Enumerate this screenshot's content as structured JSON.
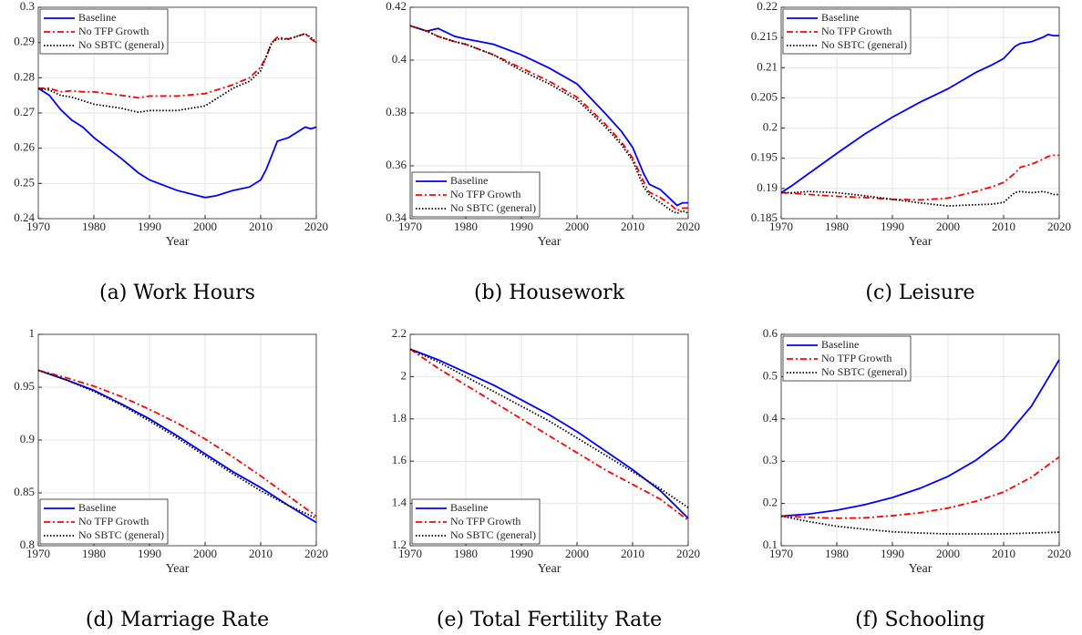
{
  "chart_data": [
    {
      "type": "line",
      "caption": "(a) Work Hours",
      "xlabel": "Year",
      "legend": "upper left",
      "grid": true,
      "x": [
        1970,
        1972,
        1974,
        1976,
        1978,
        1980,
        1985,
        1988,
        1990,
        1995,
        2000,
        2002,
        2005,
        2008,
        2010,
        2011,
        2012,
        2013,
        2015,
        2017,
        2018,
        2019,
        2020
      ],
      "series": [
        {
          "name": "Baseline",
          "color": "#0000ff",
          "style": "solid",
          "values": [
            0.277,
            0.275,
            0.271,
            0.268,
            0.266,
            0.263,
            0.257,
            0.253,
            0.251,
            0.248,
            0.246,
            0.2465,
            0.248,
            0.249,
            0.251,
            0.254,
            0.258,
            0.262,
            0.263,
            0.265,
            0.266,
            0.2655,
            0.266
          ]
        },
        {
          "name": "No TFP Growth",
          "color": "#ff0000",
          "style": "dashdot",
          "values": [
            0.277,
            0.277,
            0.276,
            0.2763,
            0.276,
            0.276,
            0.275,
            0.2743,
            0.2748,
            0.2748,
            0.2755,
            0.2765,
            0.278,
            0.28,
            0.283,
            0.286,
            0.29,
            0.2915,
            0.291,
            0.292,
            0.2925,
            0.291,
            0.29
          ]
        },
        {
          "name": "No SBTC (general)",
          "color": "#000000",
          "style": "dotted",
          "values": [
            0.277,
            0.2765,
            0.275,
            0.2745,
            0.2735,
            0.2725,
            0.2713,
            0.2702,
            0.2707,
            0.2707,
            0.272,
            0.274,
            0.277,
            0.279,
            0.282,
            0.286,
            0.29,
            0.291,
            0.291,
            0.292,
            0.2925,
            0.2915,
            0.29
          ]
        }
      ],
      "xlim": [
        1970,
        2020
      ],
      "xticks": [
        1970,
        1980,
        1990,
        2000,
        2010,
        2020
      ],
      "ylim": [
        0.24,
        0.3
      ],
      "yticks": [
        0.24,
        0.25,
        0.26,
        0.27,
        0.28,
        0.29,
        0.3
      ]
    },
    {
      "type": "line",
      "caption": "(b) Housework",
      "xlabel": "Year",
      "legend": "lower left",
      "grid": true,
      "x": [
        1970,
        1973,
        1975,
        1978,
        1980,
        1985,
        1990,
        1995,
        2000,
        2005,
        2008,
        2010,
        2012,
        2013,
        2015,
        2017,
        2018,
        2019,
        2020
      ],
      "series": [
        {
          "name": "Baseline",
          "color": "#0000ff",
          "style": "solid",
          "values": [
            0.413,
            0.411,
            0.412,
            0.409,
            0.408,
            0.406,
            0.402,
            0.397,
            0.391,
            0.38,
            0.373,
            0.367,
            0.357,
            0.353,
            0.351,
            0.347,
            0.345,
            0.346,
            0.346
          ]
        },
        {
          "name": "No TFP Growth",
          "color": "#ff0000",
          "style": "dashdot",
          "values": [
            0.413,
            0.411,
            0.409,
            0.407,
            0.406,
            0.402,
            0.397,
            0.392,
            0.386,
            0.376,
            0.369,
            0.363,
            0.354,
            0.35,
            0.348,
            0.345,
            0.343,
            0.344,
            0.344
          ]
        },
        {
          "name": "No SBTC (general)",
          "color": "#000000",
          "style": "dotted",
          "values": [
            0.413,
            0.411,
            0.409,
            0.407,
            0.406,
            0.402,
            0.396,
            0.391,
            0.385,
            0.375,
            0.368,
            0.362,
            0.352,
            0.349,
            0.346,
            0.343,
            0.342,
            0.343,
            0.342
          ]
        }
      ],
      "xlim": [
        1970,
        2020
      ],
      "xticks": [
        1970,
        1980,
        1990,
        2000,
        2010,
        2020
      ],
      "ylim": [
        0.34,
        0.42
      ],
      "yticks": [
        0.34,
        0.36,
        0.38,
        0.4,
        0.42
      ]
    },
    {
      "type": "line",
      "caption": "(c) Leisure",
      "xlabel": "Year",
      "legend": "upper left",
      "grid": true,
      "x": [
        1970,
        1972,
        1975,
        1980,
        1985,
        1990,
        1995,
        2000,
        2005,
        2008,
        2010,
        2012,
        2013,
        2015,
        2017,
        2018,
        2019,
        2020
      ],
      "series": [
        {
          "name": "Baseline",
          "color": "#0000ff",
          "style": "solid",
          "values": [
            0.1893,
            0.1905,
            0.1925,
            0.1958,
            0.199,
            0.2018,
            0.2043,
            0.2065,
            0.2092,
            0.2105,
            0.2115,
            0.2135,
            0.214,
            0.2143,
            0.215,
            0.2155,
            0.2153,
            0.2153
          ]
        },
        {
          "name": "No TFP Growth",
          "color": "#ff0000",
          "style": "dashdot",
          "values": [
            0.1893,
            0.1892,
            0.189,
            0.1887,
            0.1885,
            0.1882,
            0.1881,
            0.1884,
            0.1895,
            0.1903,
            0.191,
            0.1925,
            0.1935,
            0.194,
            0.1948,
            0.1953,
            0.1955,
            0.1955
          ]
        },
        {
          "name": "No SBTC (general)",
          "color": "#000000",
          "style": "dotted",
          "values": [
            0.1893,
            0.1893,
            0.1895,
            0.1893,
            0.1888,
            0.1882,
            0.1876,
            0.1871,
            0.1873,
            0.1874,
            0.1877,
            0.1893,
            0.1895,
            0.1893,
            0.1895,
            0.1893,
            0.189,
            0.189
          ]
        }
      ],
      "xlim": [
        1970,
        2020
      ],
      "xticks": [
        1970,
        1980,
        1990,
        2000,
        2010,
        2020
      ],
      "ylim": [
        0.185,
        0.22
      ],
      "yticks": [
        0.185,
        0.19,
        0.195,
        0.2,
        0.205,
        0.21,
        0.215,
        0.22
      ]
    },
    {
      "type": "line",
      "caption": "(d) Marriage Rate",
      "xlabel": "Year",
      "legend": "lower left",
      "grid": true,
      "x": [
        1970,
        1975,
        1980,
        1985,
        1990,
        1995,
        2000,
        2005,
        2010,
        2015,
        2020
      ],
      "series": [
        {
          "name": "Baseline",
          "color": "#0000ff",
          "style": "solid",
          "values": [
            0.966,
            0.957,
            0.947,
            0.934,
            0.92,
            0.904,
            0.887,
            0.87,
            0.855,
            0.838,
            0.822
          ]
        },
        {
          "name": "No TFP Growth",
          "color": "#ff0000",
          "style": "dashdot",
          "values": [
            0.966,
            0.959,
            0.951,
            0.941,
            0.929,
            0.916,
            0.901,
            0.884,
            0.866,
            0.847,
            0.828
          ]
        },
        {
          "name": "No SBTC (general)",
          "color": "#000000",
          "style": "dotted",
          "values": [
            0.966,
            0.957,
            0.946,
            0.933,
            0.918,
            0.902,
            0.885,
            0.868,
            0.852,
            0.838,
            0.826
          ]
        }
      ],
      "xlim": [
        1970,
        2020
      ],
      "xticks": [
        1970,
        1980,
        1990,
        2000,
        2010,
        2020
      ],
      "ylim": [
        0.8,
        1
      ],
      "yticks": [
        0.8,
        0.85,
        0.9,
        0.95,
        1
      ]
    },
    {
      "type": "line",
      "caption": "(e) Total Fertility Rate",
      "xlabel": "Year",
      "legend": "lower left",
      "grid": true,
      "x": [
        1970,
        1975,
        1980,
        1985,
        1990,
        1995,
        2000,
        2005,
        2010,
        2015,
        2020
      ],
      "series": [
        {
          "name": "Baseline",
          "color": "#0000ff",
          "style": "solid",
          "values": [
            2.13,
            2.08,
            2.02,
            1.96,
            1.89,
            1.82,
            1.74,
            1.65,
            1.56,
            1.46,
            1.33
          ]
        },
        {
          "name": "No TFP Growth",
          "color": "#ff0000",
          "style": "dashdot",
          "values": [
            2.13,
            2.04,
            1.96,
            1.88,
            1.8,
            1.72,
            1.64,
            1.56,
            1.49,
            1.42,
            1.32
          ]
        },
        {
          "name": "No SBTC (general)",
          "color": "#000000",
          "style": "dotted",
          "values": [
            2.13,
            2.07,
            2,
            1.93,
            1.86,
            1.79,
            1.71,
            1.63,
            1.55,
            1.47,
            1.38
          ]
        }
      ],
      "xlim": [
        1970,
        2020
      ],
      "xticks": [
        1970,
        1980,
        1990,
        2000,
        2010,
        2020
      ],
      "ylim": [
        1.2,
        2.2
      ],
      "yticks": [
        1.2,
        1.4,
        1.6,
        1.8,
        2,
        2.2
      ]
    },
    {
      "type": "line",
      "caption": "(f) Schooling",
      "xlabel": "Year",
      "legend": "upper left",
      "grid": true,
      "x": [
        1970,
        1975,
        1980,
        1985,
        1990,
        1995,
        2000,
        2005,
        2010,
        2015,
        2020
      ],
      "series": [
        {
          "name": "Baseline",
          "color": "#0000ff",
          "style": "solid",
          "values": [
            0.17,
            0.175,
            0.184,
            0.197,
            0.214,
            0.236,
            0.264,
            0.302,
            0.352,
            0.43,
            0.54
          ]
        },
        {
          "name": "No TFP Growth",
          "color": "#ff0000",
          "style": "dashdot",
          "values": [
            0.17,
            0.167,
            0.165,
            0.166,
            0.171,
            0.178,
            0.189,
            0.205,
            0.227,
            0.262,
            0.31
          ]
        },
        {
          "name": "No SBTC (general)",
          "color": "#000000",
          "style": "dotted",
          "values": [
            0.17,
            0.157,
            0.146,
            0.139,
            0.133,
            0.13,
            0.128,
            0.128,
            0.128,
            0.13,
            0.132
          ]
        }
      ],
      "xlim": [
        1970,
        2020
      ],
      "xticks": [
        1970,
        1980,
        1990,
        2000,
        2010,
        2020
      ],
      "ylim": [
        0.1,
        0.6
      ],
      "yticks": [
        0.1,
        0.2,
        0.3,
        0.4,
        0.5,
        0.6
      ]
    }
  ]
}
